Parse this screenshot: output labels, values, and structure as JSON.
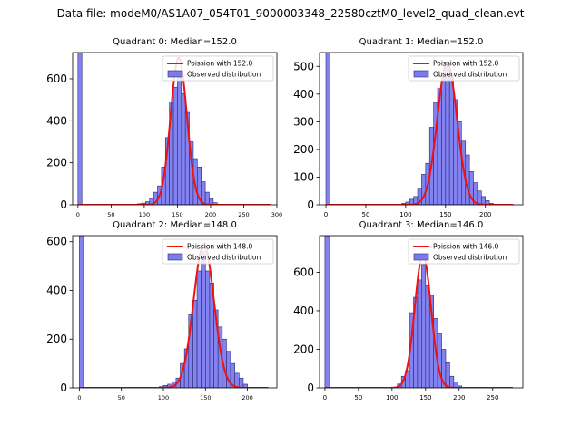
{
  "suptitle": "Data file: modeM0/AS1A07_054T01_9000003348_22580cztM0_level2_quad_clean.evt",
  "colors": {
    "bar_fill": "#7b7bef",
    "bar_edge": "#2a2a6b",
    "fit_line": "#ee1111"
  },
  "chart_data": [
    {
      "type": "bar",
      "title": "Quadrant 0: Median=152.0",
      "xlabel": "",
      "ylabel": "",
      "xlim": [
        -8,
        300
      ],
      "ylim": [
        0,
        725
      ],
      "xticks": [
        0,
        50,
        100,
        150,
        200,
        250,
        300
      ],
      "yticks": [
        0,
        200,
        400,
        600
      ],
      "bin_width": 6,
      "bins": [
        {
          "x": 0,
          "count": 725
        },
        {
          "x": 90,
          "count": 5
        },
        {
          "x": 96,
          "count": 8
        },
        {
          "x": 102,
          "count": 15
        },
        {
          "x": 108,
          "count": 30
        },
        {
          "x": 114,
          "count": 60
        },
        {
          "x": 120,
          "count": 90
        },
        {
          "x": 126,
          "count": 180
        },
        {
          "x": 132,
          "count": 320
        },
        {
          "x": 138,
          "count": 490
        },
        {
          "x": 144,
          "count": 560
        },
        {
          "x": 150,
          "count": 610
        },
        {
          "x": 156,
          "count": 530
        },
        {
          "x": 162,
          "count": 440
        },
        {
          "x": 168,
          "count": 300
        },
        {
          "x": 174,
          "count": 220
        },
        {
          "x": 180,
          "count": 180
        },
        {
          "x": 186,
          "count": 110
        },
        {
          "x": 192,
          "count": 60
        },
        {
          "x": 198,
          "count": 30
        },
        {
          "x": 204,
          "count": 10
        }
      ],
      "fit": {
        "name": "Poission with 152.0",
        "mean": 152.0,
        "peak": 700,
        "x_range": [
          0,
          290
        ]
      },
      "legend": [
        "Poission with 152.0",
        "Observed distribution"
      ]
    },
    {
      "type": "bar",
      "title": "Quadrant 1: Median=152.0",
      "xlabel": "",
      "ylabel": "",
      "xlim": [
        -8,
        247
      ],
      "ylim": [
        0,
        550
      ],
      "xticks": [
        0,
        50,
        100,
        150,
        200
      ],
      "yticks": [
        0,
        100,
        200,
        300,
        400,
        500
      ],
      "bin_width": 5,
      "bins": [
        {
          "x": 0,
          "count": 550
        },
        {
          "x": 95,
          "count": 5
        },
        {
          "x": 100,
          "count": 10
        },
        {
          "x": 105,
          "count": 20
        },
        {
          "x": 110,
          "count": 30
        },
        {
          "x": 115,
          "count": 60
        },
        {
          "x": 120,
          "count": 110
        },
        {
          "x": 125,
          "count": 150
        },
        {
          "x": 130,
          "count": 280
        },
        {
          "x": 135,
          "count": 370
        },
        {
          "x": 140,
          "count": 420
        },
        {
          "x": 145,
          "count": 480
        },
        {
          "x": 150,
          "count": 500
        },
        {
          "x": 155,
          "count": 470
        },
        {
          "x": 160,
          "count": 380
        },
        {
          "x": 165,
          "count": 300
        },
        {
          "x": 170,
          "count": 230
        },
        {
          "x": 175,
          "count": 180
        },
        {
          "x": 180,
          "count": 120
        },
        {
          "x": 185,
          "count": 80
        },
        {
          "x": 190,
          "count": 50
        },
        {
          "x": 195,
          "count": 30
        },
        {
          "x": 200,
          "count": 15
        },
        {
          "x": 205,
          "count": 5
        }
      ],
      "fit": {
        "name": "Poission with 152.0",
        "mean": 152.0,
        "peak": 515,
        "x_range": [
          0,
          235
        ]
      },
      "legend": [
        "Poission with 152.0",
        "Observed distribution"
      ]
    },
    {
      "type": "bar",
      "title": "Quadrant 2: Median=148.0",
      "xlabel": "",
      "ylabel": "",
      "xlim": [
        -8,
        235
      ],
      "ylim": [
        0,
        625
      ],
      "xticks": [
        0,
        50,
        100,
        150,
        200
      ],
      "yticks": [
        0,
        200,
        400,
        600
      ],
      "bin_width": 5,
      "bins": [
        {
          "x": 0,
          "count": 625
        },
        {
          "x": 95,
          "count": 5
        },
        {
          "x": 100,
          "count": 10
        },
        {
          "x": 105,
          "count": 15
        },
        {
          "x": 110,
          "count": 25
        },
        {
          "x": 115,
          "count": 40
        },
        {
          "x": 120,
          "count": 100
        },
        {
          "x": 125,
          "count": 160
        },
        {
          "x": 130,
          "count": 300
        },
        {
          "x": 135,
          "count": 360
        },
        {
          "x": 140,
          "count": 480
        },
        {
          "x": 145,
          "count": 560
        },
        {
          "x": 150,
          "count": 480
        },
        {
          "x": 155,
          "count": 430
        },
        {
          "x": 160,
          "count": 320
        },
        {
          "x": 165,
          "count": 250
        },
        {
          "x": 170,
          "count": 200
        },
        {
          "x": 175,
          "count": 150
        },
        {
          "x": 180,
          "count": 100
        },
        {
          "x": 185,
          "count": 60
        },
        {
          "x": 190,
          "count": 40
        },
        {
          "x": 195,
          "count": 15
        }
      ],
      "fit": {
        "name": "Poission with 148.0",
        "mean": 148.0,
        "peak": 590,
        "x_range": [
          0,
          225
        ]
      },
      "legend": [
        "Poission with 148.0",
        "Observed distribution"
      ]
    },
    {
      "type": "bar",
      "title": "Quadrant 3: Median=146.0",
      "xlabel": "",
      "ylabel": "",
      "xlim": [
        -8,
        295
      ],
      "ylim": [
        0,
        790
      ],
      "xticks": [
        0,
        50,
        100,
        150,
        200,
        250
      ],
      "yticks": [
        0,
        200,
        400,
        600
      ],
      "bin_width": 6,
      "bins": [
        {
          "x": 0,
          "count": 790
        },
        {
          "x": 108,
          "count": 20
        },
        {
          "x": 114,
          "count": 60
        },
        {
          "x": 120,
          "count": 90
        },
        {
          "x": 126,
          "count": 390
        },
        {
          "x": 132,
          "count": 470
        },
        {
          "x": 138,
          "count": 560
        },
        {
          "x": 144,
          "count": 640
        },
        {
          "x": 150,
          "count": 530
        },
        {
          "x": 156,
          "count": 480
        },
        {
          "x": 162,
          "count": 360
        },
        {
          "x": 168,
          "count": 280
        },
        {
          "x": 174,
          "count": 200
        },
        {
          "x": 180,
          "count": 130
        },
        {
          "x": 186,
          "count": 60
        },
        {
          "x": 192,
          "count": 30
        },
        {
          "x": 198,
          "count": 10
        }
      ],
      "fit": {
        "name": "Poission with 146.0",
        "mean": 146.0,
        "peak": 690,
        "x_range": [
          0,
          280
        ]
      },
      "legend": [
        "Poission with 146.0",
        "Observed distribution"
      ]
    }
  ]
}
